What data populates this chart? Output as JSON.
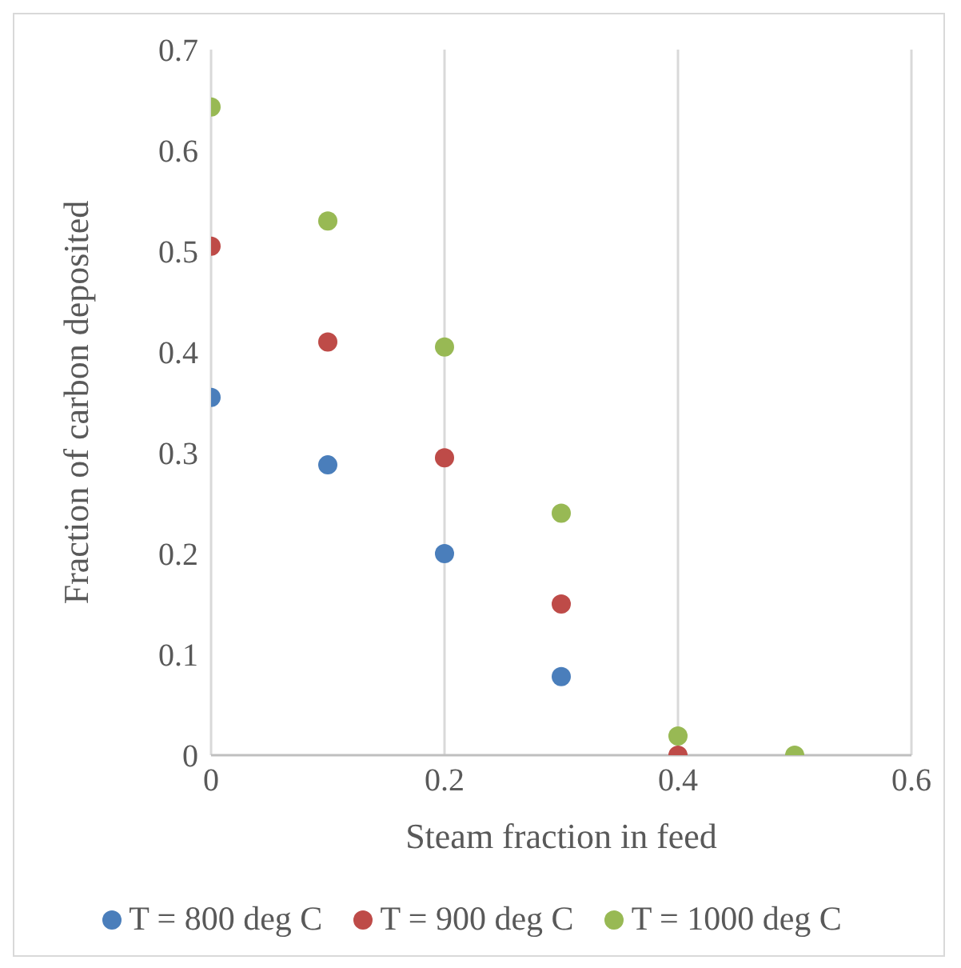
{
  "chart_data": {
    "type": "scatter",
    "xlabel": "Steam fraction in feed",
    "ylabel": "Fraction of carbon deposited",
    "x": [
      0,
      0.1,
      0.2,
      0.3,
      0.4,
      0.5
    ],
    "xlim": [
      0,
      0.6
    ],
    "xticks": [
      0,
      0.2,
      0.4,
      0.6
    ],
    "ylim": [
      0,
      0.7
    ],
    "yticks": [
      0,
      0.1,
      0.2,
      0.3,
      0.4,
      0.5,
      0.6,
      0.7
    ],
    "grid": "x",
    "legend": "bottom",
    "marker": "circle",
    "series": [
      {
        "name": "T = 800 deg C",
        "color": "#4a7ebb",
        "values": [
          0.355,
          0.288,
          0.2,
          0.078,
          null,
          null
        ]
      },
      {
        "name": "T = 900 deg C",
        "color": "#be4b48",
        "values": [
          0.505,
          0.41,
          0.295,
          0.15,
          0,
          null
        ]
      },
      {
        "name": "T = 1000 deg C",
        "color": "#98b954",
        "values": [
          0.643,
          0.53,
          0.405,
          0.24,
          0.019,
          0
        ]
      }
    ]
  }
}
